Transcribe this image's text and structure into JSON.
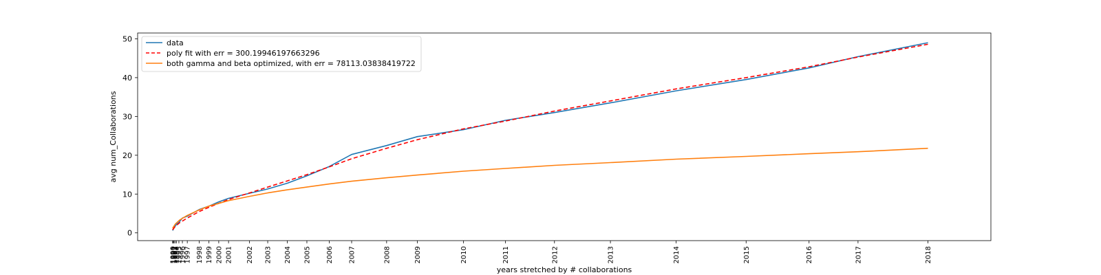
{
  "chart_data": {
    "type": "line",
    "title": "",
    "xlabel": "years stretched by # collaborations",
    "ylabel": "avg num_Collaborations",
    "x_tick_labels": [
      "1990",
      "1991",
      "1992",
      "1993",
      "1994",
      "1995",
      "1996",
      "1997",
      "1998",
      "1999",
      "2000",
      "2001",
      "2002",
      "2003",
      "2004",
      "2005",
      "2006",
      "2007",
      "2008",
      "2009",
      "2010",
      "2011",
      "2012",
      "2013",
      "2014",
      "2015",
      "2016",
      "2017",
      "2018"
    ],
    "x_tick_positions": [
      0.0,
      0.05,
      0.1,
      0.18,
      0.28,
      0.45,
      0.7,
      1.05,
      1.9,
      2.6,
      3.3,
      4.0,
      5.5,
      6.8,
      8.2,
      9.6,
      11.2,
      12.8,
      15.3,
      17.5,
      20.8,
      23.8,
      27.3,
      31.3,
      36.0,
      41.0,
      45.5,
      49.0,
      54.0
    ],
    "ylim": [
      -2,
      51.5
    ],
    "xlim": [
      -2.5,
      58.5
    ],
    "y_ticks": [
      0,
      10,
      20,
      30,
      40,
      50
    ],
    "grid": false,
    "legend_position": "top-left",
    "series": [
      {
        "name": "data",
        "color": "#1f77b4",
        "dash": "solid",
        "x": [
          0.0,
          0.05,
          0.1,
          0.18,
          0.28,
          0.45,
          0.7,
          1.05,
          1.9,
          2.6,
          3.3,
          4.0,
          5.5,
          6.8,
          8.2,
          9.6,
          11.2,
          12.8,
          15.3,
          17.5,
          20.8,
          23.8,
          27.3,
          31.3,
          36.0,
          41.0,
          45.5,
          49.0,
          54.0
        ],
        "y": [
          0.6,
          0.9,
          1.3,
          1.7,
          2.2,
          2.7,
          3.8,
          4.3,
          6.0,
          6.9,
          8.0,
          8.9,
          10.2,
          11.3,
          12.8,
          14.7,
          17.1,
          20.2,
          22.5,
          24.8,
          26.6,
          29.0,
          31.0,
          33.5,
          36.6,
          39.5,
          42.5,
          45.4,
          49.0
        ]
      },
      {
        "name": "poly fit with err = 300.19946197663296",
        "color": "#ff0000",
        "dash": "dashed",
        "x": [
          0.0,
          0.2,
          0.5,
          1.0,
          1.9,
          2.6,
          3.3,
          4.0,
          5.5,
          6.8,
          8.2,
          9.6,
          11.2,
          12.8,
          15.3,
          17.5,
          20.8,
          23.8,
          27.3,
          31.3,
          36.0,
          41.0,
          45.5,
          49.0,
          54.0
        ],
        "y": [
          0.8,
          1.7,
          2.6,
          3.7,
          5.5,
          6.6,
          7.6,
          8.6,
          10.3,
          11.8,
          13.4,
          15.0,
          17.0,
          19.1,
          21.8,
          24.0,
          26.8,
          28.8,
          31.4,
          34.0,
          37.1,
          40.0,
          42.8,
          45.3,
          48.6
        ]
      },
      {
        "name": "both gamma and beta optimized, with err = 78113.03838419722",
        "color": "#ff7f0e",
        "dash": "solid",
        "x": [
          0.0,
          0.2,
          0.5,
          1.0,
          1.9,
          2.6,
          3.3,
          4.0,
          5.5,
          6.8,
          8.2,
          9.6,
          11.2,
          12.8,
          15.3,
          17.5,
          20.8,
          23.8,
          27.3,
          31.3,
          36.0,
          41.0,
          45.5,
          49.0,
          54.0
        ],
        "y": [
          1.2,
          2.3,
          3.3,
          4.4,
          5.9,
          6.9,
          7.6,
          8.3,
          9.4,
          10.3,
          11.1,
          11.8,
          12.6,
          13.3,
          14.2,
          14.9,
          15.9,
          16.6,
          17.4,
          18.1,
          19.0,
          19.7,
          20.4,
          20.9,
          21.8
        ]
      }
    ]
  }
}
